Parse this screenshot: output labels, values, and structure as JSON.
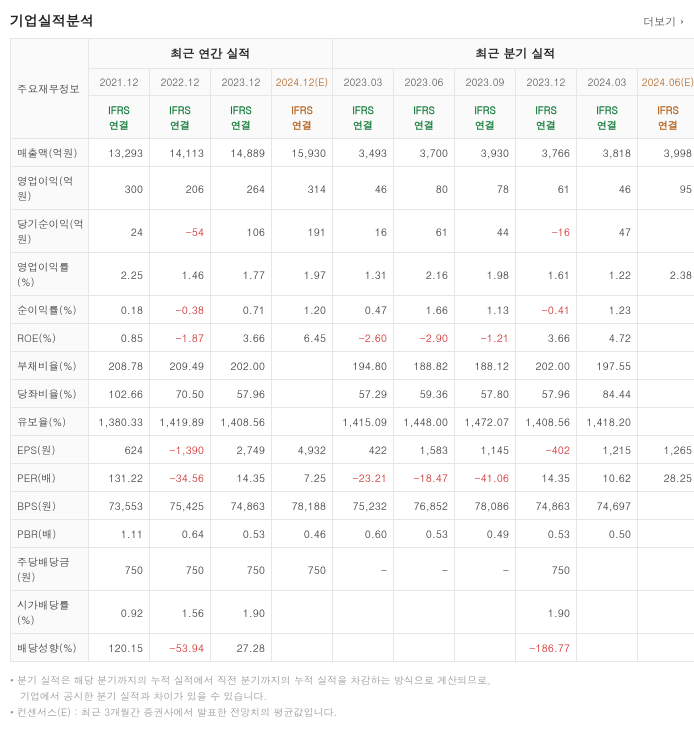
{
  "title": "기업실적분석",
  "more_label": "더보기",
  "group_annual": "최근 연간 실적",
  "group_quarter": "최근 분기 실적",
  "row_label_header": "주요재무정보",
  "ifrs_label": "IFRS<br>연결",
  "annual_periods": [
    "2021.12",
    "2022.12",
    "2023.12",
    "2024.12(E)"
  ],
  "annual_est_idx": 3,
  "quarter_periods": [
    "2023.03",
    "2023.06",
    "2023.09",
    "2023.12",
    "2024.03",
    "2024.06(E)"
  ],
  "quarter_est_idx": 5,
  "rows": [
    {
      "label": "매출액(억원)",
      "annual": [
        "13,293",
        "14,113",
        "14,889",
        "15,930"
      ],
      "quarter": [
        "3,493",
        "3,700",
        "3,930",
        "3,766",
        "3,818",
        "3,998"
      ]
    },
    {
      "label": "영업이익(억원)",
      "annual": [
        "300",
        "206",
        "264",
        "314"
      ],
      "quarter": [
        "46",
        "80",
        "78",
        "61",
        "46",
        "95"
      ]
    },
    {
      "label": "당기순이익(억원)",
      "annual": [
        "24",
        "-54",
        "106",
        "191"
      ],
      "quarter": [
        "16",
        "61",
        "44",
        "-16",
        "47",
        ""
      ]
    },
    {
      "label": "영업이익률(%)",
      "annual": [
        "2.25",
        "1.46",
        "1.77",
        "1.97"
      ],
      "quarter": [
        "1.31",
        "2.16",
        "1.98",
        "1.61",
        "1.22",
        "2.38"
      ]
    },
    {
      "label": "순이익률(%)",
      "annual": [
        "0.18",
        "-0.38",
        "0.71",
        "1.20"
      ],
      "quarter": [
        "0.47",
        "1.66",
        "1.13",
        "-0.41",
        "1.23",
        ""
      ]
    },
    {
      "label": "ROE(%)",
      "annual": [
        "0.85",
        "-1.87",
        "3.66",
        "6.45"
      ],
      "quarter": [
        "-2.60",
        "-2.90",
        "-1.21",
        "3.66",
        "4.72",
        ""
      ]
    },
    {
      "label": "부채비율(%)",
      "annual": [
        "208.78",
        "209.49",
        "202.00",
        ""
      ],
      "quarter": [
        "194.80",
        "188.82",
        "188.12",
        "202.00",
        "197.55",
        ""
      ]
    },
    {
      "label": "당좌비율(%)",
      "annual": [
        "102.66",
        "70.50",
        "57.96",
        ""
      ],
      "quarter": [
        "57.29",
        "59.36",
        "57.80",
        "57.96",
        "84.44",
        ""
      ]
    },
    {
      "label": "유보율(%)",
      "annual": [
        "1,380.33",
        "1,419.89",
        "1,408.56",
        ""
      ],
      "quarter": [
        "1,415.09",
        "1,448.00",
        "1,472.07",
        "1,408.56",
        "1,418.20",
        ""
      ]
    },
    {
      "label": "EPS(원)",
      "annual": [
        "624",
        "-1,390",
        "2,749",
        "4,932"
      ],
      "quarter": [
        "422",
        "1,583",
        "1,145",
        "-402",
        "1,215",
        "1,265"
      ]
    },
    {
      "label": "PER(배)",
      "annual": [
        "131.22",
        "-34.56",
        "14.35",
        "7.25"
      ],
      "quarter": [
        "-23.21",
        "-18.47",
        "-41.06",
        "14.35",
        "10.62",
        "28.25"
      ]
    },
    {
      "label": "BPS(원)",
      "annual": [
        "73,553",
        "75,425",
        "74,863",
        "78,188"
      ],
      "quarter": [
        "75,232",
        "76,852",
        "78,086",
        "74,863",
        "74,697",
        ""
      ]
    },
    {
      "label": "PBR(배)",
      "annual": [
        "1.11",
        "0.64",
        "0.53",
        "0.46"
      ],
      "quarter": [
        "0.60",
        "0.53",
        "0.49",
        "0.53",
        "0.50",
        ""
      ]
    },
    {
      "label": "주당배당금(원)",
      "annual": [
        "750",
        "750",
        "750",
        "750"
      ],
      "quarter": [
        "-",
        "-",
        "-",
        "750",
        "",
        ""
      ]
    },
    {
      "label": "시가배당률(%)",
      "annual": [
        "0.92",
        "1.56",
        "1.90",
        ""
      ],
      "quarter": [
        "",
        "",
        "",
        "1.90",
        "",
        ""
      ]
    },
    {
      "label": "배당성향(%)",
      "annual": [
        "120.15",
        "-53.94",
        "27.28",
        ""
      ],
      "quarter": [
        "",
        "",
        "",
        "-186.77",
        "",
        ""
      ]
    }
  ],
  "notes": [
    "분기 실적은 해당 분기까지의 누적 실적에서 직전 분기까지의 누적 실적을 차감하는 방식으로 계산되므로,",
    "기업에서 공시한 분기 실적과 차이가 있을 수 있습니다.",
    "컨센서스(E) : 최근 3개월간 증권사에서 발표한 전망치의 평균값입니다."
  ],
  "colors": {
    "border": "#e6e6e6",
    "header_bg": "#fafafa",
    "text": "#333333",
    "ifrs": "#147c3b",
    "estimate": "#b25f18",
    "negative": "#cc2222",
    "note": "#999999"
  }
}
